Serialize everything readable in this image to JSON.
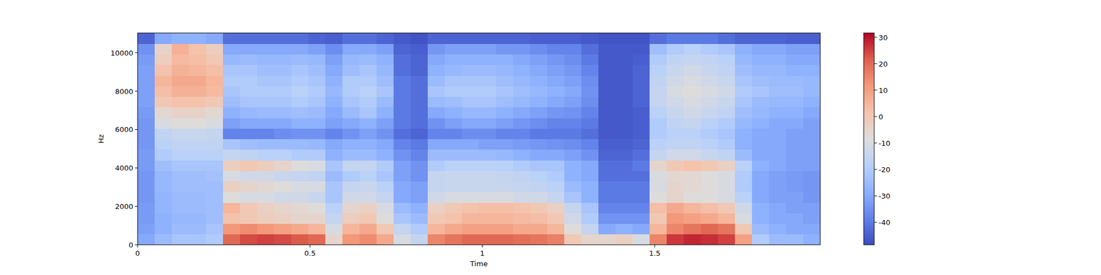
{
  "chart_data": {
    "type": "heatmap",
    "x_label": "Time",
    "y_label": "Hz",
    "color": "coolwarm",
    "xlim": [
      0,
      1.98
    ],
    "ylim": [
      0,
      11025
    ],
    "xticks": [
      0,
      0.5,
      1,
      1.5
    ],
    "yticks": [
      0,
      2000,
      4000,
      6000,
      8000,
      10000
    ],
    "zlim": [
      -48.5,
      31.6
    ],
    "zticks": [
      -40,
      -30,
      -20,
      -10,
      0,
      10,
      20,
      30
    ],
    "z": [
      [
        -30,
        -25,
        -22,
        -22,
        -20,
        20,
        24,
        25,
        24,
        22,
        20,
        -5,
        12,
        14,
        8,
        -10,
        -15,
        15,
        18,
        20,
        20,
        20,
        19,
        18,
        16,
        0,
        -5,
        -5,
        -3,
        -10,
        15,
        26,
        28,
        27,
        25,
        10,
        -20,
        -25,
        -25,
        -28
      ],
      [
        -32,
        -28,
        -25,
        -25,
        -22,
        12,
        14,
        12,
        10,
        8,
        5,
        -10,
        5,
        8,
        0,
        -15,
        -20,
        5,
        8,
        10,
        10,
        10,
        8,
        8,
        5,
        -8,
        -15,
        -30,
        -28,
        -30,
        5,
        15,
        18,
        20,
        18,
        0,
        -25,
        -28,
        -30,
        -30
      ],
      [
        -33,
        -28,
        -26,
        -26,
        -24,
        2,
        0,
        -2,
        -3,
        -5,
        -5,
        -15,
        -2,
        0,
        -8,
        -22,
        -25,
        0,
        2,
        5,
        5,
        5,
        4,
        3,
        0,
        -12,
        -20,
        -35,
        -35,
        -35,
        0,
        12,
        10,
        8,
        5,
        -10,
        -28,
        -30,
        -30,
        -32
      ],
      [
        -33,
        -27,
        -25,
        -25,
        -24,
        5,
        0,
        -3,
        -5,
        -6,
        -8,
        -18,
        -5,
        -3,
        -10,
        -25,
        -28,
        -3,
        0,
        2,
        3,
        3,
        2,
        0,
        -3,
        -15,
        -22,
        -38,
        -38,
        -38,
        3,
        8,
        5,
        3,
        0,
        -12,
        -28,
        -30,
        -32,
        -32
      ],
      [
        -34,
        -27,
        -25,
        -25,
        -24,
        -8,
        -10,
        -10,
        -12,
        -12,
        -14,
        -22,
        -12,
        -12,
        -15,
        -30,
        -32,
        -12,
        -10,
        -10,
        -10,
        -10,
        -12,
        -12,
        -15,
        -22,
        -28,
        -40,
        -40,
        -40,
        -8,
        -5,
        -8,
        -8,
        -10,
        -18,
        -30,
        -32,
        -32,
        -34
      ],
      [
        -34,
        -26,
        -24,
        -24,
        -24,
        -3,
        -5,
        -6,
        -8,
        -10,
        -10,
        -22,
        -15,
        -14,
        -18,
        -30,
        -32,
        -15,
        -14,
        -14,
        -14,
        -14,
        -15,
        -16,
        -18,
        -25,
        -28,
        -40,
        -40,
        -40,
        -10,
        -5,
        -6,
        -8,
        -10,
        -20,
        -30,
        -32,
        -33,
        -34
      ],
      [
        -34,
        -26,
        -24,
        -24,
        -23,
        -10,
        -12,
        -12,
        -14,
        -15,
        -16,
        -25,
        -20,
        -18,
        -22,
        -32,
        -35,
        -15,
        -14,
        -14,
        -14,
        -15,
        -16,
        -18,
        -20,
        -28,
        -30,
        -42,
        -42,
        -42,
        -10,
        -6,
        -6,
        -8,
        -10,
        -20,
        -30,
        -32,
        -33,
        -34
      ],
      [
        -33,
        -24,
        -22,
        -22,
        -22,
        -2,
        0,
        -2,
        -5,
        -8,
        -10,
        -22,
        -15,
        -15,
        -20,
        -32,
        -35,
        -20,
        -18,
        -18,
        -18,
        -18,
        -20,
        -22,
        -22,
        -28,
        -30,
        -42,
        -42,
        -40,
        -5,
        0,
        2,
        0,
        -3,
        -18,
        -28,
        -30,
        -32,
        -32
      ],
      [
        -33,
        -20,
        -18,
        -18,
        -18,
        -15,
        -16,
        -18,
        -18,
        -20,
        -20,
        -28,
        -25,
        -25,
        -28,
        -35,
        -38,
        -25,
        -25,
        -25,
        -25,
        -26,
        -28,
        -30,
        -30,
        -32,
        -35,
        -44,
        -44,
        -42,
        -15,
        -12,
        -12,
        -14,
        -16,
        -25,
        -30,
        -30,
        -32,
        -32
      ],
      [
        -34,
        -18,
        -16,
        -16,
        -16,
        -22,
        -24,
        -25,
        -25,
        -25,
        -26,
        -30,
        -28,
        -28,
        -30,
        -38,
        -40,
        -30,
        -30,
        -30,
        -32,
        -32,
        -33,
        -34,
        -35,
        -36,
        -38,
        -45,
        -45,
        -44,
        -18,
        -16,
        -16,
        -18,
        -20,
        -28,
        -30,
        -30,
        -32,
        -32
      ],
      [
        -34,
        -16,
        -14,
        -14,
        -15,
        -38,
        -38,
        -38,
        -36,
        -35,
        -35,
        -38,
        -35,
        -32,
        -35,
        -42,
        -44,
        -38,
        -38,
        -36,
        -36,
        -38,
        -38,
        -40,
        -40,
        -40,
        -42,
        -46,
        -46,
        -45,
        -20,
        -18,
        -18,
        -20,
        -22,
        -28,
        -30,
        -30,
        -32,
        -32
      ],
      [
        -34,
        -10,
        -8,
        -8,
        -10,
        -32,
        -30,
        -30,
        -30,
        -28,
        -28,
        -32,
        -30,
        -28,
        -32,
        -40,
        -42,
        -35,
        -32,
        -30,
        -30,
        -32,
        -34,
        -36,
        -38,
        -38,
        -40,
        -46,
        -46,
        -45,
        -20,
        -16,
        -15,
        -18,
        -20,
        -26,
        -28,
        -30,
        -30,
        -32
      ],
      [
        -33,
        -6,
        -4,
        -4,
        -6,
        -28,
        -26,
        -25,
        -25,
        -24,
        -25,
        -30,
        -25,
        -22,
        -28,
        -40,
        -42,
        -30,
        -28,
        -26,
        -26,
        -28,
        -30,
        -32,
        -34,
        -35,
        -38,
        -46,
        -46,
        -45,
        -18,
        -14,
        -12,
        -14,
        -16,
        -24,
        -26,
        -28,
        -28,
        -30
      ],
      [
        -32,
        0,
        2,
        2,
        0,
        -24,
        -22,
        -22,
        -22,
        -20,
        -22,
        -28,
        -22,
        -20,
        -25,
        -40,
        -42,
        -25,
        -24,
        -22,
        -22,
        -24,
        -26,
        -28,
        -30,
        -32,
        -36,
        -46,
        -46,
        -44,
        -15,
        -12,
        -10,
        -12,
        -14,
        -22,
        -25,
        -26,
        -26,
        -28
      ],
      [
        -32,
        3,
        6,
        6,
        4,
        -22,
        -20,
        -20,
        -20,
        -18,
        -20,
        -26,
        -20,
        -18,
        -22,
        -40,
        -42,
        -22,
        -20,
        -20,
        -20,
        -22,
        -24,
        -26,
        -28,
        -30,
        -35,
        -46,
        -46,
        -44,
        -15,
        -10,
        -8,
        -10,
        -12,
        -20,
        -22,
        -24,
        -24,
        -26
      ],
      [
        -32,
        5,
        8,
        8,
        5,
        -20,
        -20,
        -22,
        -22,
        -20,
        -22,
        -28,
        -20,
        -20,
        -24,
        -40,
        -42,
        -25,
        -22,
        -22,
        -22,
        -24,
        -26,
        -28,
        -30,
        -32,
        -36,
        -46,
        -46,
        -44,
        -16,
        -12,
        -10,
        -12,
        -14,
        -22,
        -24,
        -25,
        -25,
        -26
      ],
      [
        -32,
        2,
        6,
        5,
        3,
        -22,
        -22,
        -24,
        -24,
        -22,
        -24,
        -30,
        -24,
        -22,
        -26,
        -42,
        -44,
        -28,
        -26,
        -25,
        -25,
        -26,
        -28,
        -30,
        -32,
        -34,
        -38,
        -46,
        -46,
        -44,
        -18,
        -14,
        -12,
        -14,
        -16,
        -24,
        -26,
        -26,
        -28,
        -28
      ],
      [
        -33,
        -2,
        4,
        3,
        0,
        -26,
        -25,
        -26,
        -26,
        -25,
        -26,
        -32,
        -26,
        -25,
        -28,
        -42,
        -44,
        -30,
        -28,
        -28,
        -28,
        -28,
        -30,
        -32,
        -34,
        -36,
        -40,
        -46,
        -46,
        -45,
        -20,
        -16,
        -15,
        -16,
        -18,
        -26,
        -28,
        -28,
        -30,
        -30
      ],
      [
        -35,
        -4,
        6,
        2,
        -2,
        -30,
        -30,
        -30,
        -30,
        -30,
        -32,
        -36,
        -30,
        -30,
        -32,
        -44,
        -45,
        -34,
        -32,
        -32,
        -32,
        -34,
        -34,
        -36,
        -38,
        -38,
        -42,
        -46,
        -46,
        -46,
        -24,
        -20,
        -18,
        -20,
        -22,
        -28,
        -30,
        -30,
        -32,
        -32
      ],
      [
        -44,
        -30,
        -28,
        -28,
        -30,
        -42,
        -42,
        -42,
        -42,
        -42,
        -44,
        -45,
        -42,
        -42,
        -44,
        -46,
        -47,
        -44,
        -44,
        -44,
        -44,
        -44,
        -44,
        -45,
        -45,
        -45,
        -46,
        -47,
        -47,
        -47,
        -42,
        -40,
        -40,
        -40,
        -42,
        -44,
        -44,
        -44,
        -45,
        -45
      ]
    ]
  }
}
